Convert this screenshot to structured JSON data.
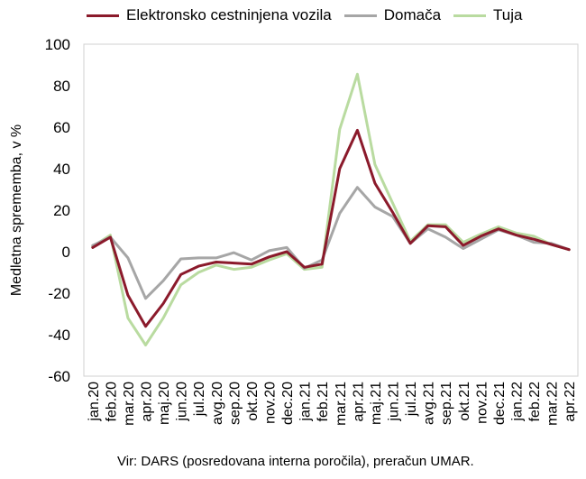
{
  "chart_data": {
    "type": "line",
    "ylabel": "Medletna sprememba, v %",
    "ylim": [
      -60,
      100
    ],
    "yticks": [
      -60,
      -40,
      -20,
      0,
      20,
      40,
      60,
      80,
      100
    ],
    "grid": false,
    "legend_position": "top",
    "categories": [
      "jan.20",
      "feb.20",
      "mar.20",
      "apr.20",
      "maj.20",
      "jun.20",
      "jul.20",
      "avg.20",
      "sep.20",
      "okt.20",
      "nov.20",
      "dec.20",
      "jan.21",
      "feb.21",
      "mar.21",
      "apr.21",
      "maj.21",
      "jun.21",
      "jul.21",
      "avg.21",
      "sep.21",
      "okt.21",
      "nov.21",
      "dec.21",
      "jan.22",
      "feb.22",
      "mar.22",
      "apr.22"
    ],
    "series": [
      {
        "name": "Elektronsko cestninjena vozila",
        "color": "#8b1a2b",
        "values": [
          2,
          7,
          -21,
          -36,
          -25,
          -11,
          -7,
          -5,
          -5.5,
          -6,
          -2.5,
          0,
          -7.5,
          -6,
          40,
          58.5,
          33,
          19,
          4,
          12.5,
          12,
          3,
          7.5,
          11,
          8,
          6,
          3.5,
          1
        ]
      },
      {
        "name": "Domača",
        "color": "#a6a6a6",
        "values": [
          3,
          7,
          -3,
          -22.5,
          -14,
          -3.5,
          -3,
          -3,
          -0.5,
          -4,
          0.5,
          2,
          -8,
          -4,
          18.5,
          31,
          21.5,
          17,
          4,
          11,
          7,
          1.5,
          6,
          10.5,
          8,
          4.5,
          4,
          1
        ]
      },
      {
        "name": "Tuja",
        "color": "#b9dba0",
        "values": [
          2.5,
          8,
          -32,
          -45,
          -32,
          -16,
          -10,
          -6.5,
          -8.5,
          -7.5,
          -4,
          -1,
          -8.5,
          -7.5,
          59,
          85.5,
          42,
          23.5,
          5,
          13,
          13,
          4.5,
          8.5,
          12,
          9,
          7.5,
          3.5,
          1
        ]
      }
    ]
  },
  "source": "Vir: DARS (posredovana interna poročila), preračun UMAR."
}
